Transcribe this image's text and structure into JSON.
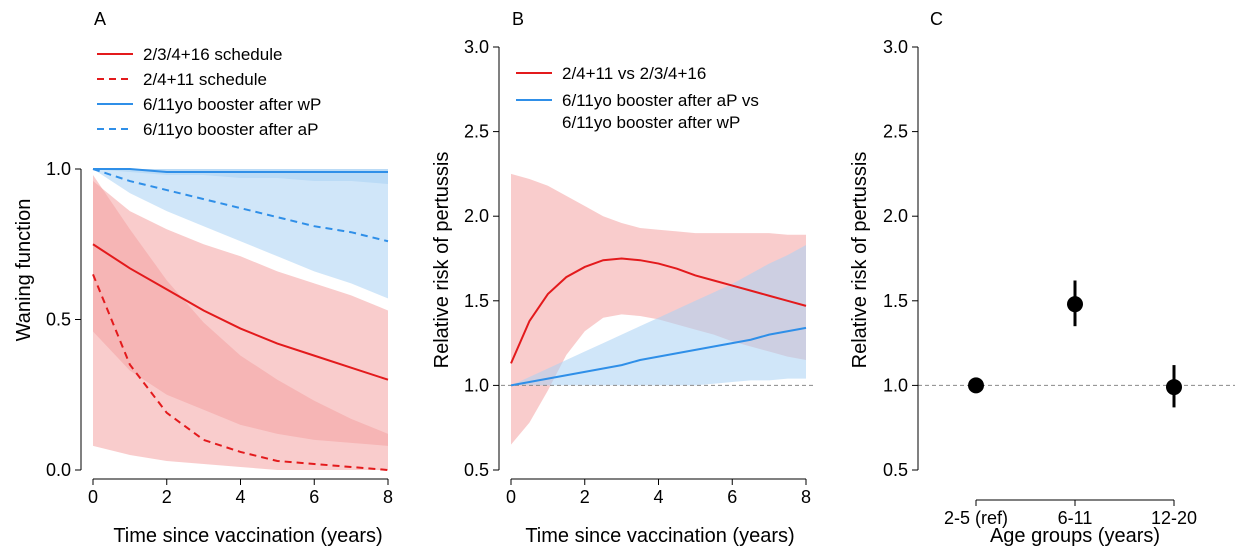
{
  "colors": {
    "red": "#e31a1c",
    "red_band": "#f4a3a3",
    "blue": "#2f8fe8",
    "blue_band": "#a9d1f4",
    "reference_line": "#8a8a8a"
  },
  "chart_data": [
    {
      "panel": "A",
      "type": "line",
      "xlabel": "Time since vaccination (years)",
      "ylabel": "Waning function",
      "xlim": [
        0,
        8
      ],
      "ylim": [
        0,
        1
      ],
      "x_ticks": [
        "0",
        "2",
        "4",
        "6",
        "8"
      ],
      "y_ticks": [
        "0.0",
        "0.5",
        "1.0"
      ],
      "legend_position": "top-left",
      "x": [
        0,
        1,
        2,
        3,
        4,
        5,
        6,
        7,
        8
      ],
      "series": [
        {
          "name": "2/3/4+16 schedule",
          "color": "red",
          "dash": false,
          "values": [
            0.75,
            0.67,
            0.6,
            0.53,
            0.47,
            0.42,
            0.38,
            0.34,
            0.3
          ],
          "lower": [
            0.46,
            0.33,
            0.25,
            0.2,
            0.15,
            0.12,
            0.1,
            0.09,
            0.08
          ],
          "upper": [
            0.96,
            0.86,
            0.8,
            0.75,
            0.71,
            0.66,
            0.62,
            0.58,
            0.53
          ]
        },
        {
          "name": "2/4+11 schedule",
          "color": "red",
          "dash": true,
          "values": [
            0.65,
            0.35,
            0.19,
            0.1,
            0.06,
            0.03,
            0.02,
            0.01,
            0.0
          ],
          "lower": [
            0.08,
            0.05,
            0.03,
            0.02,
            0.01,
            0.0,
            0.0,
            0.0,
            0.0
          ],
          "upper": [
            0.98,
            0.8,
            0.63,
            0.49,
            0.38,
            0.3,
            0.23,
            0.17,
            0.12
          ]
        },
        {
          "name": "6/11yo booster after wP",
          "color": "blue",
          "dash": false,
          "values": [
            1.0,
            1.0,
            0.99,
            0.99,
            0.99,
            0.99,
            0.99,
            0.99,
            0.99
          ],
          "lower": [
            1.0,
            0.99,
            0.98,
            0.98,
            0.97,
            0.97,
            0.96,
            0.96,
            0.95
          ],
          "upper": [
            1.0,
            1.0,
            1.0,
            1.0,
            1.0,
            1.0,
            1.0,
            1.0,
            1.0
          ]
        },
        {
          "name": "6/11yo booster after aP",
          "color": "blue",
          "dash": true,
          "values": [
            1.0,
            0.96,
            0.93,
            0.9,
            0.87,
            0.84,
            0.81,
            0.79,
            0.76
          ],
          "lower": [
            1.0,
            0.92,
            0.86,
            0.81,
            0.76,
            0.71,
            0.66,
            0.62,
            0.57
          ],
          "upper": [
            1.0,
            1.0,
            1.0,
            1.0,
            1.0,
            1.0,
            1.0,
            1.0,
            1.0
          ]
        }
      ]
    },
    {
      "panel": "B",
      "type": "line",
      "xlabel": "Time since vaccination (years)",
      "ylabel": "Relative risk of pertussis",
      "xlim": [
        0,
        8
      ],
      "ylim": [
        0.5,
        3.0
      ],
      "x_ticks": [
        "0",
        "2",
        "4",
        "6",
        "8"
      ],
      "y_ticks": [
        "0.5",
        "1.0",
        "1.5",
        "2.0",
        "2.5",
        "3.0"
      ],
      "reference_line": 1.0,
      "legend_position": "top-right",
      "x": [
        0,
        0.5,
        1,
        1.5,
        2,
        2.5,
        3,
        3.5,
        4,
        4.5,
        5,
        5.5,
        6,
        6.5,
        7,
        7.5,
        8
      ],
      "series": [
        {
          "name": "2/4+11 vs 2/3/4+16",
          "color": "red",
          "values": [
            1.13,
            1.38,
            1.54,
            1.64,
            1.7,
            1.74,
            1.75,
            1.74,
            1.72,
            1.69,
            1.65,
            1.62,
            1.59,
            1.56,
            1.53,
            1.5,
            1.47
          ],
          "lower": [
            0.65,
            0.78,
            0.97,
            1.18,
            1.32,
            1.4,
            1.42,
            1.41,
            1.39,
            1.36,
            1.33,
            1.3,
            1.26,
            1.23,
            1.2,
            1.17,
            1.15
          ],
          "upper": [
            2.25,
            2.22,
            2.18,
            2.12,
            2.06,
            2.0,
            1.96,
            1.93,
            1.92,
            1.91,
            1.9,
            1.9,
            1.9,
            1.9,
            1.9,
            1.89,
            1.89
          ]
        },
        {
          "name": "6/11yo booster after aP vs\n6/11yo booster after wP",
          "color": "blue",
          "values": [
            1.0,
            1.02,
            1.04,
            1.06,
            1.08,
            1.1,
            1.12,
            1.15,
            1.17,
            1.19,
            1.21,
            1.23,
            1.25,
            1.27,
            1.3,
            1.32,
            1.34
          ],
          "lower": [
            1.0,
            1.0,
            1.0,
            1.0,
            1.0,
            1.0,
            1.0,
            1.0,
            1.0,
            1.0,
            1.0,
            1.01,
            1.02,
            1.03,
            1.03,
            1.04,
            1.04
          ],
          "upper": [
            1.0,
            1.05,
            1.1,
            1.15,
            1.2,
            1.25,
            1.3,
            1.35,
            1.4,
            1.45,
            1.5,
            1.55,
            1.6,
            1.66,
            1.72,
            1.77,
            1.83
          ]
        }
      ]
    },
    {
      "panel": "C",
      "type": "scatter",
      "xlabel": "Age groups (years)",
      "ylabel": "Relative risk of pertussis",
      "ylim": [
        0.5,
        3.0
      ],
      "y_ticks": [
        "0.5",
        "1.0",
        "1.5",
        "2.0",
        "2.5",
        "3.0"
      ],
      "reference_line": 1.0,
      "categories": [
        "2-5 (ref)",
        "6-11",
        "12-20"
      ],
      "values": [
        1.0,
        1.48,
        0.99
      ],
      "lower": [
        1.0,
        1.35,
        0.87
      ],
      "upper": [
        1.0,
        1.62,
        1.12
      ]
    }
  ]
}
